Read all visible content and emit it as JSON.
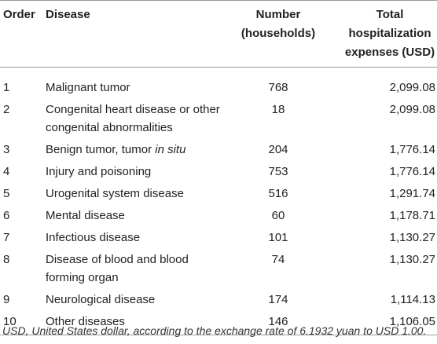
{
  "table": {
    "header": [
      [
        "Order"
      ],
      [
        "Disease"
      ],
      [
        "Number",
        "(households)"
      ],
      [
        "Total",
        "hospitalization",
        "expenses (USD)"
      ]
    ],
    "rows": [
      {
        "order": "1",
        "disease": [
          "Malignant tumor"
        ],
        "number": "768",
        "expenses": "2,099.08"
      },
      {
        "order": "2",
        "disease": [
          "Congenital heart disease or other congenital abnormalities"
        ],
        "number": "18",
        "expenses": "2,099.08"
      },
      {
        "order": "3",
        "disease": [
          "Benign tumor, tumor ",
          "in situ"
        ],
        "number": "204",
        "expenses": "1,776.14"
      },
      {
        "order": "4",
        "disease": [
          "Injury and poisoning"
        ],
        "number": "753",
        "expenses": "1,776.14"
      },
      {
        "order": "5",
        "disease": [
          "Urogenital system disease"
        ],
        "number": "516",
        "expenses": "1,291.74"
      },
      {
        "order": "6",
        "disease": [
          "Mental disease"
        ],
        "number": "60",
        "expenses": "1,178.71"
      },
      {
        "order": "7",
        "disease": [
          "Infectious disease"
        ],
        "number": "101",
        "expenses": "1,130.27"
      },
      {
        "order": "8",
        "disease": [
          "Disease of blood and blood forming organ"
        ],
        "number": "74",
        "expenses": "1,130.27"
      },
      {
        "order": "9",
        "disease": [
          "Neurological disease"
        ],
        "number": "174",
        "expenses": "1,114.13"
      },
      {
        "order": "10",
        "disease": [
          "Other diseases"
        ],
        "number": "146",
        "expenses": "1,106.05"
      }
    ],
    "footnote": "USD, United States dollar, according to the exchange rate of 6.1932 yuan to USD 1.00."
  }
}
